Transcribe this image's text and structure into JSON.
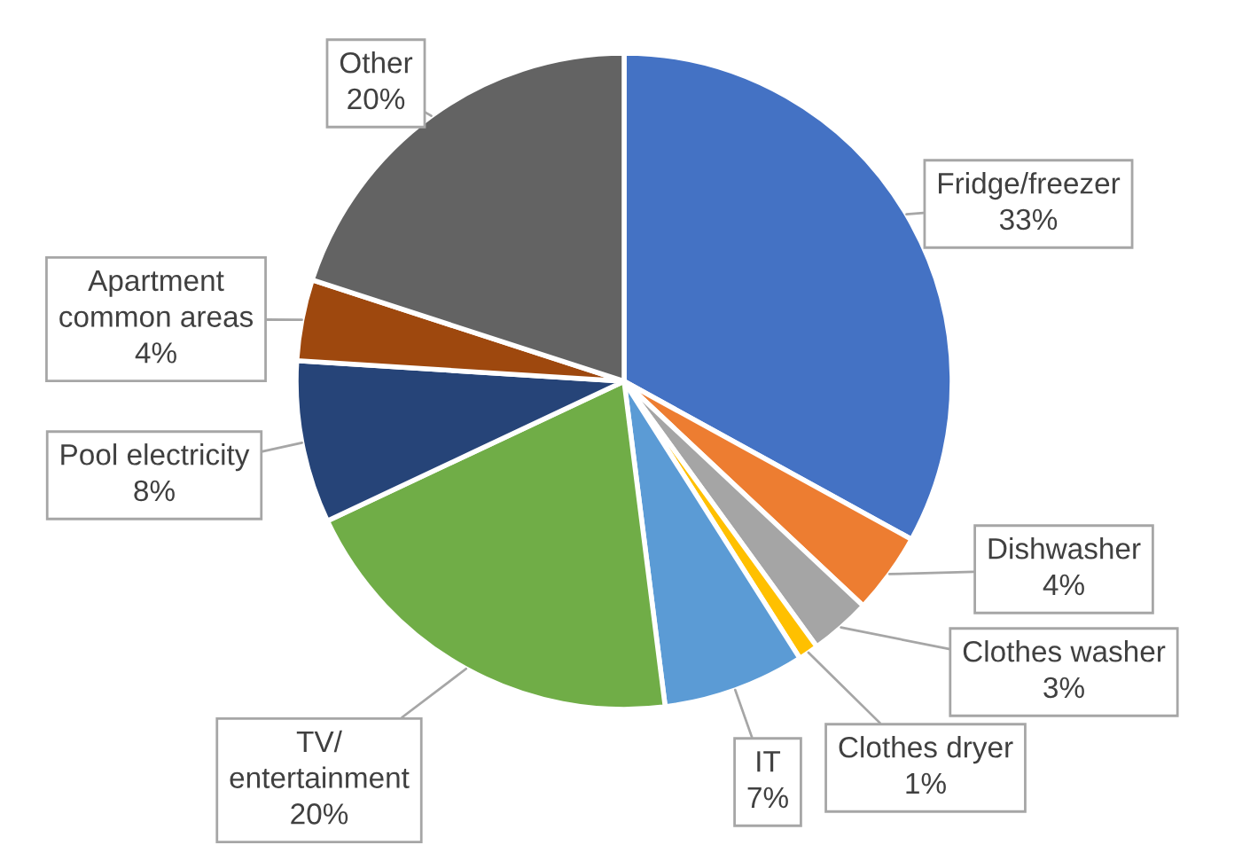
{
  "chart_data": {
    "type": "pie",
    "categories": [
      "Fridge/freezer",
      "Dishwasher",
      "Clothes washer",
      "Clothes dryer",
      "IT",
      "TV/\nentertainment",
      "Pool electricity",
      "Apartment\ncommon areas",
      "Other"
    ],
    "values": [
      33,
      4,
      3,
      1,
      7,
      20,
      8,
      4,
      20
    ],
    "colors": [
      "#4472c4",
      "#ed7d31",
      "#a5a5a5",
      "#ffc000",
      "#5b9bd5",
      "#70ad47",
      "#264478",
      "#9e480e",
      "#636363"
    ],
    "value_labels": [
      "33%",
      "4%",
      "3%",
      "1%",
      "7%",
      "20%",
      "8%",
      "4%",
      "20%"
    ],
    "legend": false
  }
}
